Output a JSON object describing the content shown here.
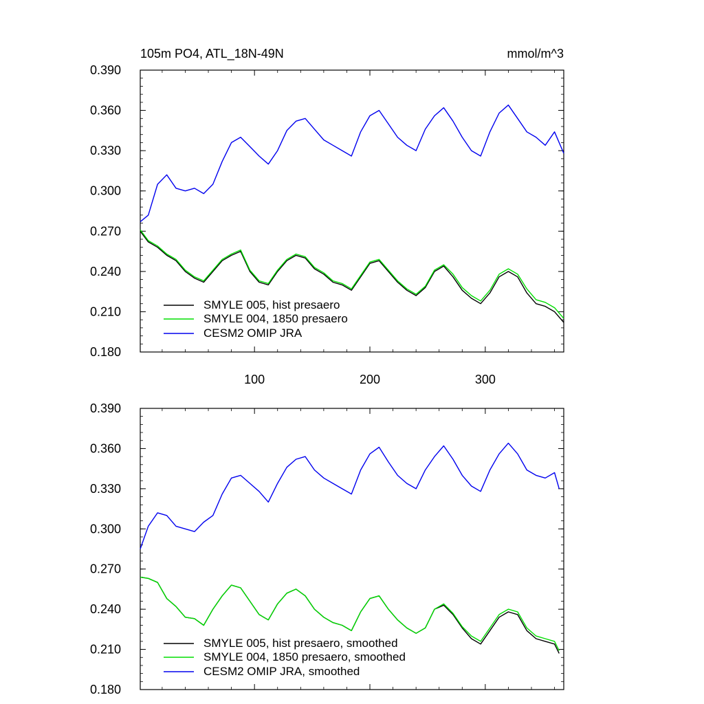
{
  "chart_data": [
    {
      "type": "line",
      "title": "105m PO4, ATL_18N-49N",
      "units": "mmol/m^3",
      "xlim": [
        1,
        368
      ],
      "ylim": [
        0.18,
        0.39
      ],
      "y_ticks": [
        "0.390",
        "0.360",
        "0.330",
        "0.300",
        "0.270",
        "0.240",
        "0.210",
        "0.180"
      ],
      "y_tick_values": [
        0.39,
        0.36,
        0.33,
        0.3,
        0.27,
        0.24,
        0.21,
        0.18
      ],
      "x_ticks": [
        "100",
        "200",
        "300"
      ],
      "x_tick_values": [
        100,
        200,
        300
      ],
      "x_tick_labels_shown": true,
      "legend": "bottom-left",
      "series": [
        {
          "name": "SMYLE 005, hist presaero",
          "color": "#000000",
          "x": [
            1,
            8,
            16,
            24,
            32,
            40,
            48,
            56,
            64,
            72,
            80,
            88,
            96,
            104,
            112,
            120,
            128,
            136,
            144,
            152,
            160,
            168,
            176,
            184,
            192,
            200,
            208,
            216,
            224,
            232,
            240,
            248,
            256,
            264,
            272,
            280,
            288,
            296,
            304,
            312,
            320,
            328,
            336,
            344,
            352,
            360,
            368
          ],
          "values": [
            0.27,
            0.262,
            0.258,
            0.252,
            0.248,
            0.24,
            0.235,
            0.232,
            0.24,
            0.248,
            0.252,
            0.255,
            0.24,
            0.232,
            0.23,
            0.24,
            0.248,
            0.252,
            0.25,
            0.242,
            0.238,
            0.232,
            0.23,
            0.226,
            0.236,
            0.246,
            0.248,
            0.24,
            0.232,
            0.226,
            0.222,
            0.228,
            0.24,
            0.244,
            0.236,
            0.226,
            0.22,
            0.216,
            0.224,
            0.236,
            0.24,
            0.236,
            0.224,
            0.216,
            0.214,
            0.21,
            0.202
          ]
        },
        {
          "name": "SMYLE 004, 1850 presaero",
          "color": "#00dd00",
          "x": [
            1,
            8,
            16,
            24,
            32,
            40,
            48,
            56,
            64,
            72,
            80,
            88,
            96,
            104,
            112,
            120,
            128,
            136,
            144,
            152,
            160,
            168,
            176,
            184,
            192,
            200,
            208,
            216,
            224,
            232,
            240,
            248,
            256,
            264,
            272,
            280,
            288,
            296,
            304,
            312,
            320,
            328,
            336,
            344,
            352,
            360,
            368
          ],
          "values": [
            0.271,
            0.263,
            0.259,
            0.253,
            0.249,
            0.241,
            0.236,
            0.233,
            0.241,
            0.249,
            0.253,
            0.256,
            0.241,
            0.233,
            0.231,
            0.241,
            0.249,
            0.253,
            0.251,
            0.243,
            0.239,
            0.233,
            0.231,
            0.227,
            0.237,
            0.247,
            0.249,
            0.241,
            0.233,
            0.227,
            0.223,
            0.229,
            0.241,
            0.245,
            0.238,
            0.228,
            0.222,
            0.218,
            0.226,
            0.238,
            0.242,
            0.238,
            0.227,
            0.219,
            0.217,
            0.213,
            0.205
          ]
        },
        {
          "name": "CESM2 OMIP JRA",
          "color": "#0000ee",
          "x": [
            1,
            8,
            16,
            24,
            32,
            40,
            48,
            56,
            64,
            72,
            80,
            88,
            96,
            104,
            112,
            120,
            128,
            136,
            144,
            152,
            160,
            168,
            176,
            184,
            192,
            200,
            208,
            216,
            224,
            232,
            240,
            248,
            256,
            264,
            272,
            280,
            288,
            296,
            304,
            312,
            320,
            328,
            336,
            344,
            352,
            360,
            368
          ],
          "values": [
            0.277,
            0.282,
            0.305,
            0.312,
            0.302,
            0.3,
            0.302,
            0.298,
            0.305,
            0.322,
            0.336,
            0.34,
            0.333,
            0.326,
            0.32,
            0.33,
            0.345,
            0.352,
            0.354,
            0.346,
            0.338,
            0.334,
            0.33,
            0.326,
            0.344,
            0.356,
            0.36,
            0.35,
            0.34,
            0.334,
            0.33,
            0.346,
            0.356,
            0.362,
            0.352,
            0.34,
            0.33,
            0.326,
            0.344,
            0.358,
            0.364,
            0.354,
            0.344,
            0.34,
            0.334,
            0.344,
            0.328
          ]
        }
      ]
    },
    {
      "type": "line",
      "title": "",
      "units": "",
      "xlim": [
        1,
        368
      ],
      "ylim": [
        0.18,
        0.39
      ],
      "y_ticks": [
        "0.390",
        "0.360",
        "0.330",
        "0.300",
        "0.270",
        "0.240",
        "0.210",
        "0.180"
      ],
      "y_tick_values": [
        0.39,
        0.36,
        0.33,
        0.3,
        0.27,
        0.24,
        0.21,
        0.18
      ],
      "x_ticks": [],
      "x_tick_values": [
        100,
        200,
        300
      ],
      "x_tick_labels_shown": false,
      "legend": "bottom-left",
      "series": [
        {
          "name": "SMYLE 005, hist presaero, smoothed",
          "color": "#000000",
          "x": [
            1,
            8,
            16,
            24,
            32,
            40,
            48,
            56,
            64,
            72,
            80,
            88,
            96,
            104,
            112,
            120,
            128,
            136,
            144,
            152,
            160,
            168,
            176,
            184,
            192,
            200,
            208,
            216,
            224,
            232,
            240,
            248,
            256,
            264,
            272,
            280,
            288,
            296,
            304,
            312,
            320,
            328,
            336,
            344,
            352,
            360,
            364
          ],
          "values": [
            0.264,
            0.263,
            0.26,
            0.248,
            0.242,
            0.234,
            0.233,
            0.228,
            0.24,
            0.25,
            0.258,
            0.256,
            0.246,
            0.236,
            0.232,
            0.244,
            0.252,
            0.255,
            0.25,
            0.24,
            0.234,
            0.23,
            0.228,
            0.224,
            0.238,
            0.248,
            0.25,
            0.24,
            0.232,
            0.226,
            0.222,
            0.226,
            0.24,
            0.243,
            0.236,
            0.226,
            0.218,
            0.214,
            0.224,
            0.234,
            0.238,
            0.236,
            0.224,
            0.218,
            0.216,
            0.214,
            0.207
          ]
        },
        {
          "name": "SMYLE 004, 1850 presaero, smoothed",
          "color": "#00dd00",
          "x": [
            1,
            8,
            16,
            24,
            32,
            40,
            48,
            56,
            64,
            72,
            80,
            88,
            96,
            104,
            112,
            120,
            128,
            136,
            144,
            152,
            160,
            168,
            176,
            184,
            192,
            200,
            208,
            216,
            224,
            232,
            240,
            248,
            256,
            264,
            272,
            280,
            288,
            296,
            304,
            312,
            320,
            328,
            336,
            344,
            352,
            360,
            364
          ],
          "values": [
            0.264,
            0.263,
            0.26,
            0.248,
            0.242,
            0.234,
            0.233,
            0.228,
            0.24,
            0.25,
            0.258,
            0.256,
            0.246,
            0.236,
            0.232,
            0.244,
            0.252,
            0.255,
            0.25,
            0.24,
            0.234,
            0.23,
            0.228,
            0.224,
            0.238,
            0.248,
            0.25,
            0.24,
            0.232,
            0.226,
            0.222,
            0.226,
            0.24,
            0.244,
            0.237,
            0.227,
            0.22,
            0.216,
            0.226,
            0.236,
            0.24,
            0.238,
            0.226,
            0.22,
            0.218,
            0.216,
            0.209
          ]
        },
        {
          "name": "CESM2 OMIP JRA, smoothed",
          "color": "#0000ee",
          "x": [
            1,
            8,
            16,
            24,
            32,
            40,
            48,
            56,
            64,
            72,
            80,
            88,
            96,
            104,
            112,
            120,
            128,
            136,
            144,
            152,
            160,
            168,
            176,
            184,
            192,
            200,
            208,
            216,
            224,
            232,
            240,
            248,
            256,
            264,
            272,
            280,
            288,
            296,
            304,
            312,
            320,
            328,
            336,
            344,
            352,
            360,
            364
          ],
          "values": [
            0.285,
            0.302,
            0.312,
            0.31,
            0.302,
            0.3,
            0.298,
            0.305,
            0.31,
            0.326,
            0.338,
            0.34,
            0.334,
            0.328,
            0.32,
            0.334,
            0.346,
            0.352,
            0.354,
            0.344,
            0.338,
            0.334,
            0.33,
            0.326,
            0.344,
            0.356,
            0.361,
            0.35,
            0.34,
            0.334,
            0.33,
            0.344,
            0.354,
            0.362,
            0.352,
            0.34,
            0.332,
            0.328,
            0.344,
            0.356,
            0.364,
            0.356,
            0.344,
            0.34,
            0.338,
            0.342,
            0.33
          ]
        }
      ]
    }
  ]
}
